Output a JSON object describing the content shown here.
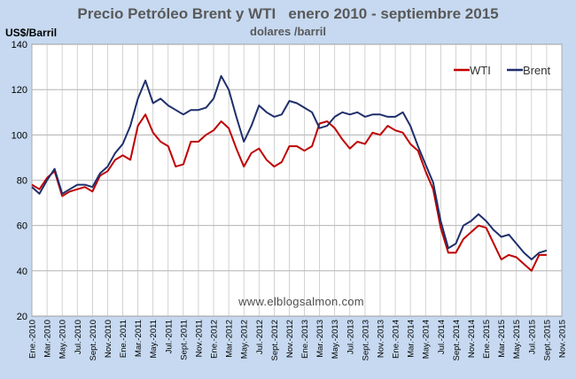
{
  "chart_data": {
    "type": "line",
    "title": "Precio Petróleo Brent y WTI   enero 2010 - septiembre 2015",
    "subtitle": "dolares /barril",
    "ylabel": "US$/Barril",
    "ylim": [
      20,
      140
    ],
    "yticks": [
      20,
      40,
      60,
      80,
      100,
      120,
      140
    ],
    "grid": true,
    "legend": "top-right",
    "watermark": "www.elblogsalmon.com",
    "xlim": [
      0,
      70
    ],
    "xtick_labels": [
      "Ene.-2010",
      "Mar.-2010",
      "May.-2010",
      "Jul.-2010",
      "Sept.-2010",
      "Nov.-2010",
      "Ene.-2011",
      "Mar.-2011",
      "May.-2011",
      "Jul.-2011",
      "Sept.-2011",
      "Nov.-2011",
      "Ene.-2012",
      "Mar.-2012",
      "May.-2012",
      "Jul.-2012",
      "Sept.-2012",
      "Nov.-2012",
      "Ene.-2013",
      "Mar.-2013",
      "May.-2013",
      "Jul.-2013",
      "Sept.-2013",
      "Nov.-2013",
      "Ene.-2014",
      "Mar.-2014",
      "May.-2014",
      "Jul.-2014",
      "Sept.-2014",
      "Nov.-2014",
      "Ene.-2015",
      "Mar.-2015",
      "May.-2015",
      "Jul.-2015",
      "Sept.-2015",
      "Nov.-2015"
    ],
    "series": [
      {
        "name": "WTI",
        "color": "#c00000",
        "x": [
          0,
          1,
          2,
          3,
          4,
          5,
          6,
          7,
          8,
          9,
          10,
          11,
          12,
          13,
          14,
          15,
          16,
          17,
          18,
          19,
          20,
          21,
          22,
          23,
          24,
          25,
          26,
          27,
          28,
          29,
          30,
          31,
          32,
          33,
          34,
          35,
          36,
          37,
          38,
          39,
          40,
          41,
          42,
          43,
          44,
          45,
          46,
          47,
          48,
          49,
          50,
          51,
          52,
          53,
          54,
          55,
          56,
          57,
          58,
          59,
          60,
          61,
          62,
          63,
          64,
          65,
          66,
          67,
          68
        ],
        "values": [
          78,
          76,
          81,
          84,
          73,
          75,
          76,
          77,
          75,
          82,
          84,
          89,
          91,
          89,
          104,
          109,
          101,
          97,
          95,
          86,
          87,
          97,
          97,
          100,
          102,
          106,
          103,
          94,
          86,
          92,
          94,
          89,
          86,
          88,
          95,
          95,
          93,
          95,
          105,
          106,
          103,
          98,
          94,
          97,
          96,
          101,
          100,
          104,
          102,
          101,
          96,
          93,
          84,
          76,
          59,
          48,
          48,
          54,
          57,
          60,
          59,
          52,
          45,
          47,
          46,
          43,
          40,
          47,
          47
        ]
      },
      {
        "name": "Brent",
        "color": "#1f2f6b",
        "x": [
          0,
          1,
          2,
          3,
          4,
          5,
          6,
          7,
          8,
          9,
          10,
          11,
          12,
          13,
          14,
          15,
          16,
          17,
          18,
          19,
          20,
          21,
          22,
          23,
          24,
          25,
          26,
          27,
          28,
          29,
          30,
          31,
          32,
          33,
          34,
          35,
          36,
          37,
          38,
          39,
          40,
          41,
          42,
          43,
          44,
          45,
          46,
          47,
          48,
          49,
          50,
          51,
          52,
          53,
          54,
          55,
          56,
          57,
          58,
          59,
          60,
          61,
          62,
          63,
          64,
          65,
          66,
          67,
          68
        ],
        "values": [
          77,
          74,
          80,
          85,
          74,
          76,
          78,
          78,
          77,
          83,
          86,
          92,
          96,
          104,
          116,
          124,
          114,
          116,
          113,
          111,
          109,
          111,
          111,
          112,
          116,
          126,
          120,
          108,
          97,
          104,
          113,
          110,
          108,
          109,
          115,
          114,
          112,
          110,
          103,
          104,
          108,
          110,
          109,
          110,
          108,
          109,
          109,
          108,
          108,
          110,
          104,
          95,
          87,
          79,
          62,
          50,
          52,
          60,
          62,
          65,
          62,
          58,
          55,
          56,
          52,
          48,
          45,
          48,
          49
        ]
      }
    ]
  }
}
